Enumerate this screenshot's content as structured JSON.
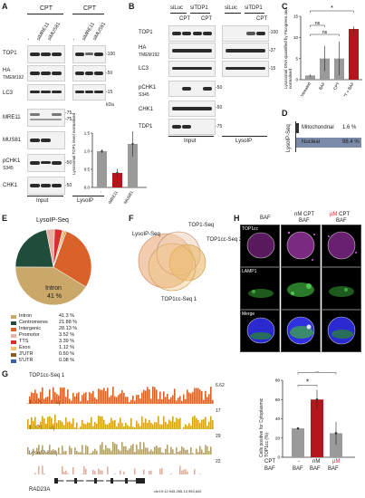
{
  "panel_labels": {
    "A": "A",
    "B": "B",
    "C": "C",
    "D": "D",
    "E": "E",
    "F": "F",
    "G": "G",
    "H": "H"
  },
  "panelA": {
    "header_left": "CPT",
    "header_right": "CPT",
    "lanes_left": [
      "-",
      "siMRE11",
      "siMUS81"
    ],
    "lanes_right": [
      "-",
      "siMRE11",
      "siMUS81"
    ],
    "rows": [
      "TOP1",
      "HA",
      "TMEM192",
      "LC3",
      "MRE11",
      "MUS81",
      "pCHK1",
      "S345",
      "CHK1"
    ],
    "mw": [
      "-100",
      "-50",
      "-15",
      "kDa",
      "-75",
      "-75",
      "-50",
      "-50"
    ],
    "footer_left": "Input",
    "footer_right": "LysoIP",
    "bar_ylabel": "Lysosomal TOP1 level normalised",
    "bar_ticks": [
      "1.5",
      "1.0",
      "0.5",
      "0.0"
    ],
    "bar_categories": [
      "-",
      "siMRE11",
      "siMUS81"
    ]
  },
  "panelB": {
    "top_labels": [
      "siLuc",
      "siTDP1",
      "siLuc",
      "siTDP1"
    ],
    "cpt_labels": [
      "CPT",
      "CPT",
      "CPT"
    ],
    "rows": [
      "TOP1",
      "HA",
      "TMEM192",
      "LC3",
      "pCHK1",
      "S345",
      "CHK1",
      "TDP1"
    ],
    "mw": [
      "-100",
      "-37",
      "-15",
      "-50",
      "-50",
      "-75"
    ],
    "footer_left": "Input",
    "footer_right": "LysoIP"
  },
  "panelC": {
    "ylabel": "Lysosomal DNA quantified by Picogreen and normalised",
    "ticks": [
      "15",
      "10",
      "5",
      "0"
    ],
    "categories": [
      "Untreated",
      "BAF",
      "CPT",
      "CPT + BAF"
    ],
    "sig": [
      "ns",
      "ns",
      "*"
    ]
  },
  "panelD": {
    "axis": "LysoIP-Seq",
    "mito_label": "Mitochondrial",
    "mito_value": "1.6 %",
    "nuc_label": "Nuclear",
    "nuc_value": "98.4 %"
  },
  "panelE": {
    "title": "LysoIP-Seq",
    "pie_label_name": "Intron",
    "pie_label_value": "41 %",
    "legend": [
      {
        "name": "Intron",
        "value": "41.3 %",
        "color": "#c9a86a"
      },
      {
        "name": "Centromeres",
        "value": "21.88 %",
        "color": "#1f4d3a"
      },
      {
        "name": "Intergenic",
        "value": "28.13 %",
        "color": "#d9612a"
      },
      {
        "name": "Promotor",
        "value": "3.52 %",
        "color": "#e8b0a0"
      },
      {
        "name": "TTS",
        "value": "3.39 %",
        "color": "#d62f2f"
      },
      {
        "name": "Exon",
        "value": "1.12 %",
        "color": "#f0c070"
      },
      {
        "name": "3'UTR",
        "value": "0.50 %",
        "color": "#8b5a2b"
      },
      {
        "name": "5'UTR",
        "value": "0.08 %",
        "color": "#3a5fa0"
      }
    ]
  },
  "panelF": {
    "labels": [
      "LysoIP-Seq",
      "TOP1-Seq",
      "TOP1cc-Seq 2",
      "TOP1cc-Seq 1"
    ]
  },
  "panelG": {
    "tracks": [
      {
        "name": "TOP1cc-Seq 1",
        "max": "6.62",
        "color": "#d9612a"
      },
      {
        "name": "TOP1cc-Seq 2",
        "max": "17",
        "color": "#d6a51c"
      },
      {
        "name": "TOP1-Seq",
        "max": "29",
        "color": "#b5a06a"
      },
      {
        "name": "LysoIP-Seq",
        "max": "22",
        "color": "#e0b0a0"
      }
    ],
    "gene": "RAD23A",
    "coords": "chr19:12,945,265-12,953,642"
  },
  "panelH": {
    "columns": [
      {
        "line1": "",
        "line2": "BAF",
        "accent": ""
      },
      {
        "line1": "nM CPT",
        "line2": "BAF",
        "accent": ""
      },
      {
        "line1": " CPT",
        "line2": "BAF",
        "accent": "µM"
      }
    ],
    "rows": [
      "TOP1cc",
      "LAMP1",
      "Merge"
    ],
    "bar_ylabel": "Cells positive for Cytoplasmic TOP1cc (%)",
    "bar_ticks": [
      "80",
      "60",
      "40",
      "20",
      "0"
    ],
    "bar_cpt_label": "CPT",
    "bar_cpt_values": [
      "-",
      "nM",
      "µM"
    ],
    "bar_baf_label": "BAF",
    "bar_baf_values": [
      "BAF",
      "BAF",
      "BAF"
    ],
    "sig": [
      "ns",
      "*"
    ]
  },
  "colors": {
    "red": "#b3171b",
    "grey": "#9a9a9a",
    "orange": "#d9612a",
    "gold": "#d6a51c",
    "pink": "#e0b0a0"
  }
}
